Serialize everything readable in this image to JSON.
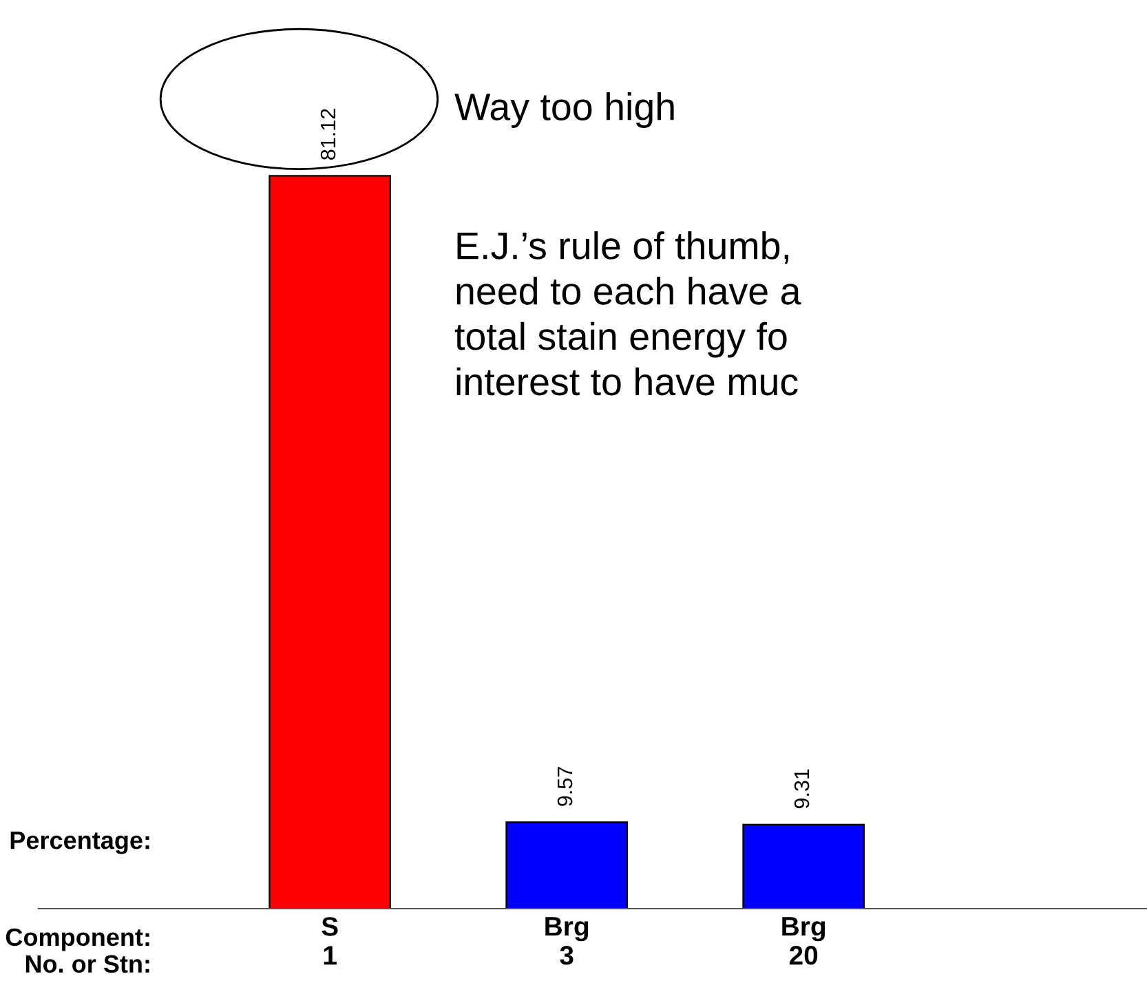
{
  "chart_data": {
    "type": "bar",
    "categories": [
      "S\n1",
      "Brg\n3",
      "Brg\n20"
    ],
    "values": [
      81.12,
      9.57,
      9.31
    ],
    "colors": [
      "#ff0000",
      "#0000ff",
      "#0000ff"
    ],
    "data_labels": true,
    "grid": false,
    "annotations": [
      "Way too high",
      "E.J.’s rule of thumb,\nneed to each have a\ntotal stain energy fo\ninterest to have muc",
      "Percentage:",
      "Component:\nNo. or Stn:"
    ]
  }
}
